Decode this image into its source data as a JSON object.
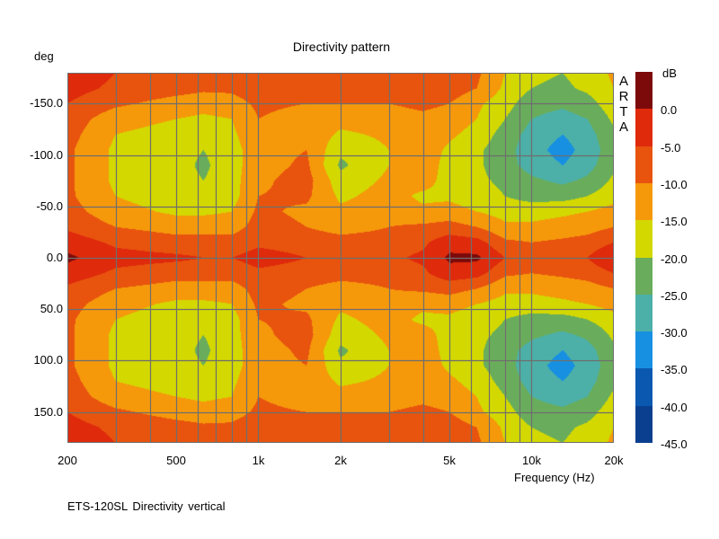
{
  "chart_data": {
    "type": "heatmap",
    "title": "Directivity pattern",
    "xlabel": "Frequency (Hz)",
    "ylabel": "deg",
    "xscale": "log",
    "xlim": [
      200,
      20000
    ],
    "ylim": [
      -180,
      180
    ],
    "x_ticks": [
      {
        "value": 200,
        "label": "200"
      },
      {
        "value": 500,
        "label": "500"
      },
      {
        "value": 1000,
        "label": "1k"
      },
      {
        "value": 2000,
        "label": "2k"
      },
      {
        "value": 5000,
        "label": "5k"
      },
      {
        "value": 10000,
        "label": "10k"
      },
      {
        "value": 20000,
        "label": "20k"
      }
    ],
    "y_ticks": [
      {
        "value": -150,
        "label": "-150.0"
      },
      {
        "value": -100,
        "label": "-100.0"
      },
      {
        "value": -50,
        "label": "-50.0"
      },
      {
        "value": 0,
        "label": "0.0"
      },
      {
        "value": 50,
        "label": "50.0"
      },
      {
        "value": 100,
        "label": "100.0"
      },
      {
        "value": 150,
        "label": "150.0"
      }
    ],
    "x_grid": [
      200,
      300,
      400,
      500,
      600,
      700,
      800,
      900,
      1000,
      2000,
      3000,
      4000,
      5000,
      6000,
      7000,
      8000,
      9000,
      10000,
      20000
    ],
    "y_grid": [
      -150,
      -100,
      -50,
      0,
      50,
      100,
      150
    ],
    "colorbar": {
      "unit": "dB",
      "labels": [
        "0.0",
        "-5.0",
        "-10.0",
        "-15.0",
        "-20.0",
        "-25.0",
        "-30.0",
        "-35.0",
        "-40.0",
        "-45.0"
      ],
      "range": [
        5,
        -45
      ],
      "step": 5,
      "colors": [
        "#7d0a0a",
        "#df2a0c",
        "#e8540e",
        "#f5990b",
        "#d3d800",
        "#69ad5c",
        "#4cb0a8",
        "#1790e2",
        "#0b58b0",
        "#0a3f8f"
      ]
    },
    "symmetric_about_zero": true,
    "frequencies": [
      200,
      300,
      500,
      630,
      800,
      1000,
      1500,
      2000,
      3000,
      4000,
      5000,
      6300,
      8000,
      10000,
      13000,
      16000,
      20000
    ],
    "angles": [
      0,
      15,
      30,
      45,
      60,
      75,
      90,
      105,
      120,
      135,
      150,
      165,
      180
    ],
    "values_db": [
      [
        1,
        -3,
        -4,
        -5,
        -5,
        -3,
        -5,
        -6,
        -6,
        -4,
        1,
        1,
        -5,
        -6,
        -6,
        -5,
        0
      ],
      [
        -2,
        -6,
        -8,
        -8,
        -8,
        -6,
        -7,
        -8,
        -8,
        -6,
        -2,
        -3,
        -9,
        -10,
        -9,
        -8,
        -5
      ],
      [
        -6,
        -10,
        -12,
        -12,
        -12,
        -8,
        -10,
        -12,
        -10,
        -9,
        -8,
        -10,
        -14,
        -14,
        -13,
        -12,
        -10
      ],
      [
        -8,
        -13,
        -16,
        -16,
        -15,
        -9,
        -11,
        -14,
        -12,
        -14,
        -13,
        -15,
        -17,
        -17,
        -16,
        -15,
        -13
      ],
      [
        -9,
        -15,
        -18,
        -19,
        -17,
        -10,
        -9,
        -16,
        -13,
        -16,
        -16,
        -18,
        -20,
        -22,
        -22,
        -20,
        -17
      ],
      [
        -9,
        -16,
        -18,
        -20,
        -17,
        -11,
        -8,
        -18,
        -14,
        -13,
        -17,
        -19,
        -21,
        -24,
        -26,
        -24,
        -19
      ],
      [
        -9,
        -16,
        -18,
        -21,
        -17,
        -12,
        -9,
        -21,
        -15,
        -12,
        -17,
        -19,
        -23,
        -27,
        -30,
        -27,
        -21
      ],
      [
        -9,
        -16,
        -18,
        -20,
        -17,
        -12,
        -10,
        -19,
        -15,
        -12,
        -16,
        -19,
        -23,
        -28,
        -32,
        -28,
        -22
      ],
      [
        -8,
        -15,
        -17,
        -19,
        -16,
        -11,
        -11,
        -16,
        -14,
        -12,
        -14,
        -17,
        -22,
        -27,
        -30,
        -27,
        -21
      ],
      [
        -7,
        -13,
        -15,
        -16,
        -15,
        -10,
        -12,
        -13,
        -12,
        -11,
        -12,
        -15,
        -20,
        -25,
        -27,
        -25,
        -19
      ],
      [
        -5,
        -9,
        -12,
        -13,
        -12,
        -9,
        -10,
        -10,
        -10,
        -9,
        -10,
        -14,
        -18,
        -23,
        -24,
        -22,
        -17
      ],
      [
        -3,
        -6,
        -8,
        -9,
        -9,
        -7,
        -8,
        -8,
        -8,
        -7,
        -7,
        -10,
        -16,
        -20,
        -21,
        -19,
        -15
      ],
      [
        -2,
        -5,
        -6,
        -7,
        -7,
        -6,
        -7,
        -7,
        -7,
        -6,
        -6,
        -9,
        -15,
        -19,
        -20,
        -18,
        -14
      ]
    ],
    "grid": true,
    "legend": "right"
  },
  "watermark": "ARTA",
  "footer": "ETS-120SL   Directivity vertical"
}
